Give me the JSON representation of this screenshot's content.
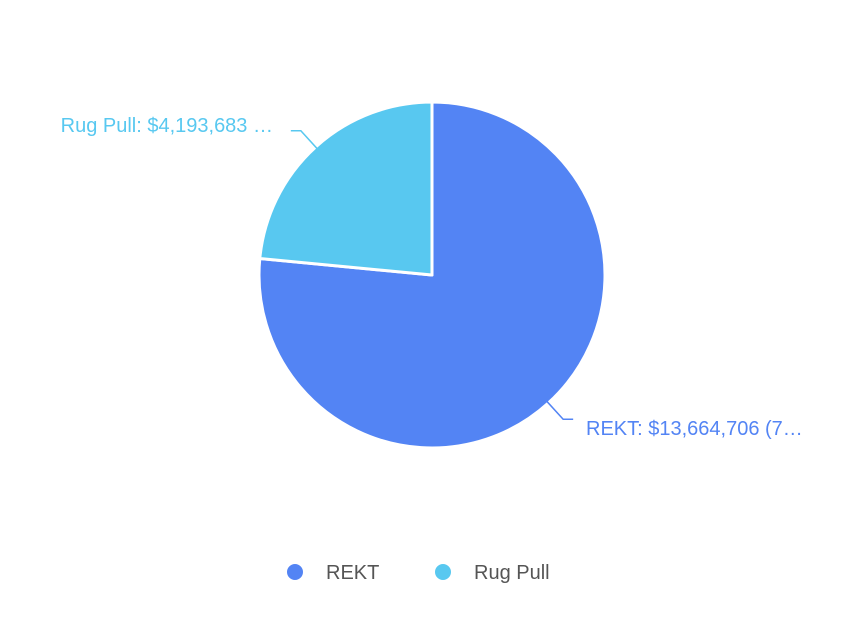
{
  "chart_data": {
    "type": "pie",
    "slices": [
      {
        "name": "REKT",
        "value": 13664706,
        "label": "REKT: $13,664,706 (7…",
        "color": "#5384f4"
      },
      {
        "name": "Rug Pull",
        "value": 4193683,
        "label": "Rug Pull: $4,193,683 …",
        "color": "#58c8f0"
      }
    ],
    "legend": {
      "position": "bottom",
      "items": [
        "REKT",
        "Rug Pull"
      ]
    }
  }
}
